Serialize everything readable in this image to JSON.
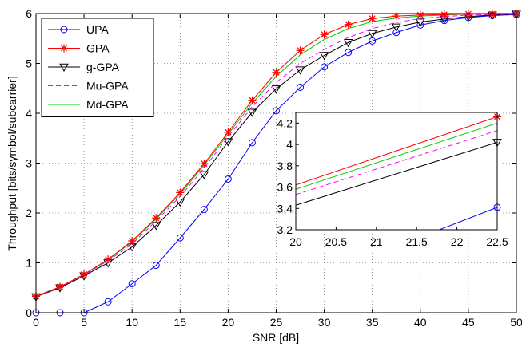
{
  "chart_data": {
    "type": "line",
    "xlabel": "SNR [dB]",
    "ylabel": "Throughput [bits/symbol/subcarrier]",
    "xlim": [
      0,
      50
    ],
    "ylim": [
      0,
      6
    ],
    "xticks": [
      0,
      5,
      10,
      15,
      20,
      25,
      30,
      35,
      40,
      45,
      50
    ],
    "yticks": [
      0,
      1,
      2,
      3,
      4,
      5,
      6
    ],
    "grid": true,
    "legend_position": "top-left",
    "series": [
      {
        "name": "UPA",
        "color": "#0000ff",
        "dash": "solid",
        "marker": "circle",
        "x": [
          0,
          2.5,
          5,
          7.5,
          10,
          12.5,
          15,
          17.5,
          20,
          22.5,
          25,
          27.5,
          30,
          32.5,
          35,
          37.5,
          40,
          42.5,
          45,
          47.5,
          50
        ],
        "y": [
          0,
          0,
          0,
          0.22,
          0.58,
          0.95,
          1.5,
          2.07,
          2.68,
          3.41,
          4.05,
          4.52,
          4.93,
          5.22,
          5.45,
          5.62,
          5.77,
          5.86,
          5.92,
          5.96,
          5.98
        ]
      },
      {
        "name": "GPA",
        "color": "#ff0000",
        "dash": "solid",
        "marker": "star",
        "x": [
          0,
          2.5,
          5,
          7.5,
          10,
          12.5,
          15,
          17.5,
          20,
          22.5,
          25,
          27.5,
          30,
          32.5,
          35,
          37.5,
          40,
          42.5,
          45,
          47.5,
          50
        ],
        "y": [
          0.33,
          0.52,
          0.77,
          1.07,
          1.44,
          1.9,
          2.41,
          2.99,
          3.62,
          4.26,
          4.82,
          5.26,
          5.58,
          5.78,
          5.9,
          5.95,
          5.97,
          5.98,
          5.99,
          5.99,
          6.0
        ]
      },
      {
        "name": "g-GPA",
        "color": "#000000",
        "dash": "solid",
        "marker": "triangle-down",
        "x": [
          0,
          2.5,
          5,
          7.5,
          10,
          12.5,
          15,
          17.5,
          20,
          22.5,
          25,
          27.5,
          30,
          32.5,
          35,
          37.5,
          40,
          42.5,
          45,
          47.5,
          50
        ],
        "y": [
          0.32,
          0.5,
          0.74,
          1.0,
          1.32,
          1.75,
          2.22,
          2.77,
          3.43,
          4.02,
          4.49,
          4.87,
          5.16,
          5.42,
          5.6,
          5.73,
          5.83,
          5.89,
          5.94,
          5.97,
          5.99
        ]
      },
      {
        "name": "Mu-GPA",
        "color": "#ff00ff",
        "dash": "dashed",
        "marker": "none",
        "x": [
          0,
          2.5,
          5,
          7.5,
          10,
          12.5,
          15,
          17.5,
          20,
          22.5,
          25,
          27.5,
          30,
          32.5,
          35,
          37.5,
          40,
          42.5,
          45,
          47.5,
          50
        ],
        "y": [
          0.32,
          0.51,
          0.76,
          1.04,
          1.38,
          1.84,
          2.33,
          2.9,
          3.53,
          4.13,
          4.62,
          5.0,
          5.28,
          5.52,
          5.7,
          5.82,
          5.9,
          5.94,
          5.97,
          5.98,
          5.99
        ]
      },
      {
        "name": "Md-GPA",
        "color": "#00cc00",
        "dash": "solid",
        "marker": "none",
        "x": [
          0,
          2.5,
          5,
          7.5,
          10,
          12.5,
          15,
          17.5,
          20,
          22.5,
          25,
          27.5,
          30,
          32.5,
          35,
          37.5,
          40,
          42.5,
          45,
          47.5,
          50
        ],
        "y": [
          0.33,
          0.52,
          0.77,
          1.06,
          1.42,
          1.88,
          2.38,
          2.96,
          3.58,
          4.2,
          4.74,
          5.17,
          5.48,
          5.7,
          5.84,
          5.91,
          5.95,
          5.97,
          5.99,
          5.99,
          6.0
        ]
      }
    ],
    "inset": {
      "xlim": [
        20,
        22.5
      ],
      "ylim": [
        3.2,
        4.3
      ],
      "xticks": [
        20,
        20.5,
        21,
        21.5,
        22,
        22.5
      ],
      "ytick_labels": [
        "3.2",
        "3.4",
        "3.6",
        "3.8",
        "4",
        "4.2"
      ],
      "yticks": [
        3.2,
        3.4,
        3.6,
        3.8,
        4.0,
        4.2
      ],
      "series": [
        {
          "ref": "UPA",
          "x": [
            20,
            22.5
          ],
          "y": [
            2.68,
            3.41
          ],
          "markers_x": [
            22.5
          ]
        },
        {
          "ref": "GPA",
          "x": [
            20,
            22.5
          ],
          "y": [
            3.62,
            4.26
          ],
          "markers_x": [
            22.5
          ]
        },
        {
          "ref": "g-GPA",
          "x": [
            20,
            22.5
          ],
          "y": [
            3.43,
            4.02
          ],
          "markers_x": [
            22.5
          ]
        },
        {
          "ref": "Mu-GPA",
          "x": [
            20,
            22.5
          ],
          "y": [
            3.53,
            4.13
          ],
          "markers_x": []
        },
        {
          "ref": "Md-GPA",
          "x": [
            20,
            22.5
          ],
          "y": [
            3.58,
            4.2
          ],
          "markers_x": []
        }
      ]
    }
  }
}
